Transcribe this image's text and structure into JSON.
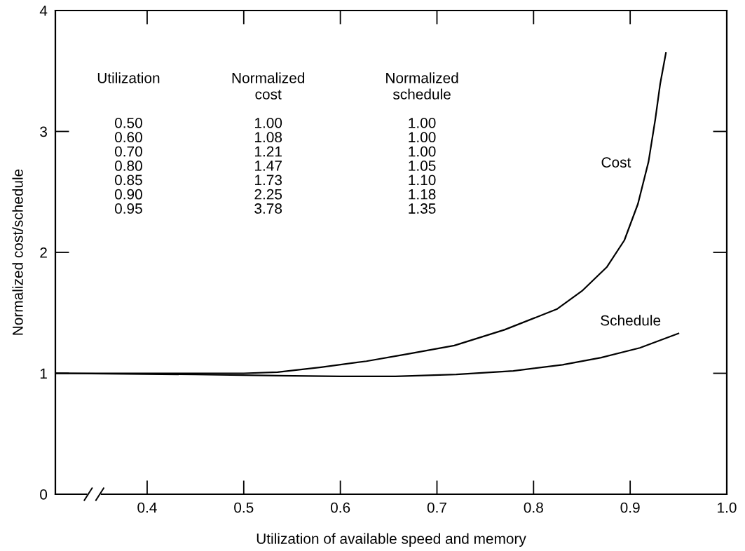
{
  "chart_data": {
    "type": "line",
    "xlabel": "Utilization of available speed and memory",
    "ylabel": "Normalized cost/schedule",
    "xlim": [
      0.305,
      1.0
    ],
    "xticks": [
      0.4,
      0.5,
      0.6,
      0.7,
      0.8,
      0.9,
      {
        "value": 1.0,
        "label": "1.0"
      }
    ],
    "ylim": [
      0,
      4
    ],
    "yticks": [
      {
        "value": 0,
        "label": "0"
      },
      1,
      2,
      3,
      4
    ],
    "grid": false,
    "legend": false,
    "marker": "none",
    "line_style": "solid",
    "series": [
      {
        "name": "Cost",
        "color": "#000000",
        "x": [
          0.305,
          0.4,
          0.5,
          0.535,
          0.58,
          0.627,
          0.67,
          0.718,
          0.77,
          0.824,
          0.85,
          0.876,
          0.894,
          0.908,
          0.919,
          0.926,
          0.931,
          0.937
        ],
        "values": [
          1.0,
          1.0,
          1.0,
          1.01,
          1.05,
          1.1,
          1.16,
          1.23,
          1.36,
          1.53,
          1.68,
          1.88,
          2.1,
          2.4,
          2.75,
          3.1,
          3.39,
          3.65
        ]
      },
      {
        "name": "Schedule",
        "color": "#000000",
        "x": [
          0.305,
          0.45,
          0.535,
          0.6,
          0.657,
          0.72,
          0.779,
          0.83,
          0.87,
          0.91,
          0.95
        ],
        "values": [
          1.0,
          0.99,
          0.98,
          0.975,
          0.975,
          0.99,
          1.02,
          1.07,
          1.13,
          1.21,
          1.33
        ]
      }
    ],
    "annotations": [
      "Utilization",
      "Normalized\ncost",
      "Normalized\nschedule",
      "0.50",
      "1.00",
      "1.00",
      "0.60",
      "1.08",
      "1.00",
      "0.70",
      "1.21",
      "1.00",
      "0.80",
      "1.47",
      "1.05",
      "0.85",
      "1.73",
      "1.10",
      "0.90",
      "2.25",
      "1.18",
      "0.95",
      "3.78",
      "1.35"
    ]
  }
}
